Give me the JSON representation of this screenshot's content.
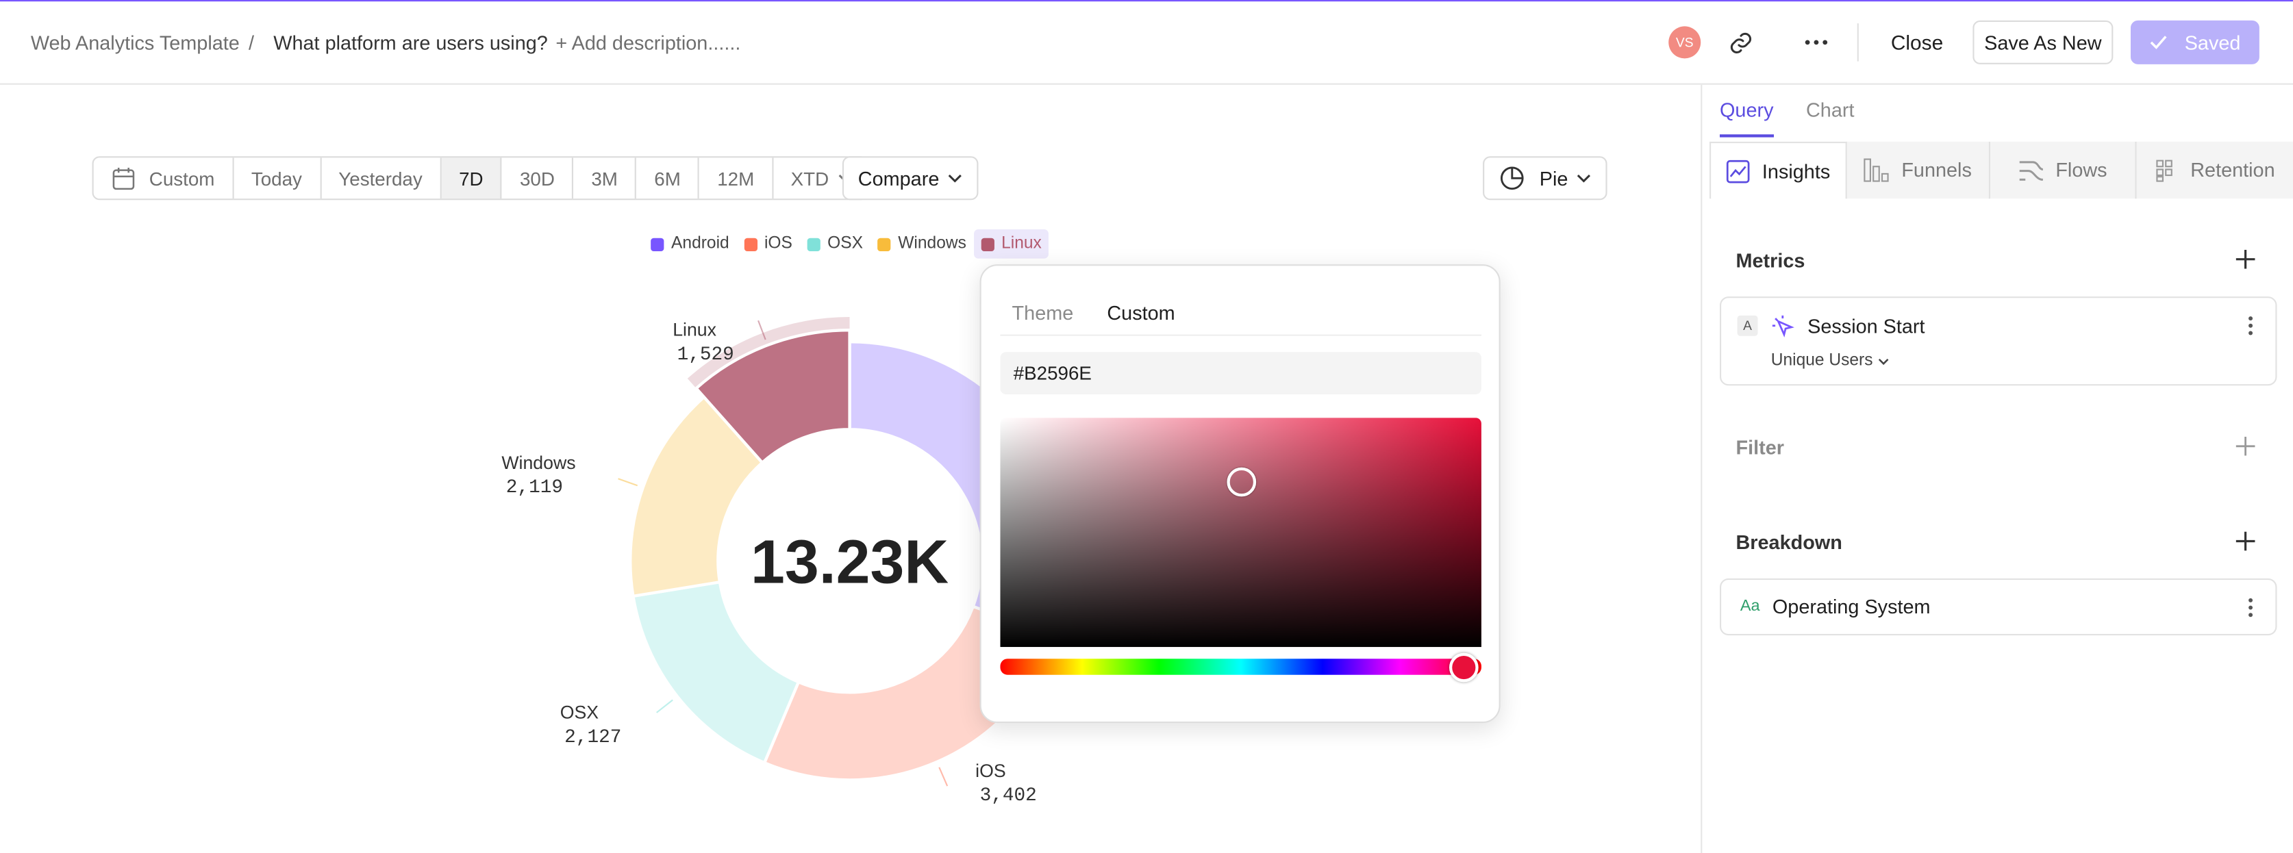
{
  "header": {
    "breadcrumb": "Web Analytics Template",
    "separator": "/",
    "title": "What platform are users using?",
    "description": "+ Add description......",
    "avatar": "VS",
    "close": "Close",
    "save_as_new": "Save As New",
    "saved": "Saved"
  },
  "toolbar": {
    "date_ranges": [
      "Custom",
      "Today",
      "Yesterday",
      "7D",
      "30D",
      "3M",
      "6M",
      "12M",
      "XTD"
    ],
    "selected_range": "7D",
    "compare": "Compare",
    "chart_type": "Pie"
  },
  "chart_data": {
    "type": "pie",
    "donut": true,
    "legend": "top",
    "categories": [
      "Android",
      "iOS",
      "OSX",
      "Windows",
      "Linux"
    ],
    "values": [
      4053,
      3402,
      2127,
      2119,
      1529
    ],
    "value_labels": [
      null,
      "3,402",
      "2,127",
      "2,119",
      "1,529"
    ],
    "colors": [
      "#7856ff",
      "#ff7557",
      "#80e1d9",
      "#f8bc3b",
      "#b2596e"
    ],
    "center_label": "13.23K"
  },
  "color_picker": {
    "tabs": [
      "Theme",
      "Custom"
    ],
    "active_tab": "Custom",
    "hex": "#B2596E"
  },
  "panel": {
    "tabs": [
      "Query",
      "Chart"
    ],
    "active_tab": "Query",
    "report_types": [
      "Insights",
      "Funnels",
      "Flows",
      "Retention"
    ],
    "active_report": "Insights",
    "metrics": {
      "title": "Metrics",
      "items": [
        {
          "badge": "A",
          "name": "Session Start",
          "measure": "Unique Users"
        }
      ]
    },
    "filter": {
      "title": "Filter"
    },
    "breakdown": {
      "title": "Breakdown",
      "items": [
        {
          "badge": "Aa",
          "name": "Operating System"
        }
      ]
    }
  }
}
